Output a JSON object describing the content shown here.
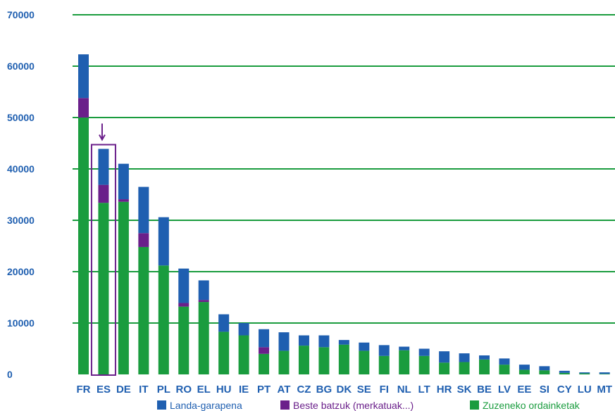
{
  "chart_data": {
    "type": "bar",
    "stacked": true,
    "categories": [
      "FR",
      "ES",
      "DE",
      "IT",
      "PL",
      "RO",
      "EL",
      "HU",
      "IE",
      "PT",
      "AT",
      "CZ",
      "BG",
      "DK",
      "SE",
      "FI",
      "NL",
      "LT",
      "HR",
      "SK",
      "BE",
      "LV",
      "EE",
      "SI",
      "CY",
      "LU",
      "MT"
    ],
    "series": [
      {
        "name": "Zuzeneko ordainketak",
        "color": "#1a9c3e",
        "values": [
          50000,
          33400,
          33600,
          24800,
          21200,
          13200,
          14100,
          8300,
          7600,
          4000,
          4600,
          5600,
          5300,
          5800,
          4600,
          3600,
          4700,
          3600,
          2300,
          2400,
          2900,
          1900,
          900,
          800,
          300,
          200,
          100
        ]
      },
      {
        "name": "Beste batzuk (merkatuak...)",
        "color": "#6a1f8a",
        "values": [
          3800,
          3500,
          500,
          2700,
          0,
          700,
          400,
          0,
          0,
          1300,
          0,
          0,
          0,
          0,
          0,
          0,
          0,
          0,
          0,
          0,
          0,
          0,
          0,
          0,
          0,
          0,
          0
        ]
      },
      {
        "name": "Landa-garapena",
        "color": "#1f5fb0",
        "values": [
          8500,
          7000,
          6900,
          9000,
          9400,
          6700,
          3800,
          3400,
          2400,
          3500,
          3600,
          2000,
          2300,
          900,
          1600,
          2100,
          700,
          1400,
          2200,
          1700,
          800,
          1200,
          1000,
          800,
          400,
          200,
          300
        ]
      }
    ],
    "ylim": [
      0,
      70000
    ],
    "yticks": [
      "0",
      "10000",
      "20000",
      "30000",
      "40000",
      "50000",
      "60000",
      "70000"
    ],
    "highlight": {
      "category": "ES",
      "color": "#6a1f8a",
      "marker": "arrow"
    },
    "grid": true,
    "legend_position": "bottom"
  },
  "colors": {
    "grid": "#1a9c3e",
    "axis_text": "#1f5fb0",
    "highlight": "#6a1f8a"
  }
}
